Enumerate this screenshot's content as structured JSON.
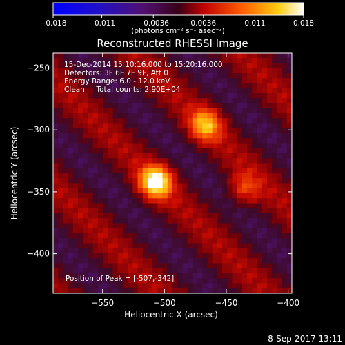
{
  "chart_data": {
    "type": "heatmap",
    "title": "Reconstructed RHESSI Image",
    "xlabel": "Heliocentric X (arcsec)",
    "ylabel": "Heliocentric Y (arcsec)",
    "xlim": [
      -590,
      -397
    ],
    "ylim": [
      -432,
      -238
    ],
    "xticks": [
      -550,
      -500,
      -450,
      -400
    ],
    "yticks": [
      -250,
      -300,
      -350,
      -400
    ],
    "colorbar": {
      "range": [
        -0.018,
        0.018
      ],
      "ticks": [
        -0.018,
        -0.011,
        -0.0036,
        0.0036,
        0.011,
        0.018
      ],
      "tick_labels": [
        "-0.018",
        "-0.011",
        "-0.0036",
        "0.0036",
        "0.011",
        "0.018"
      ],
      "units_label": "(photons cm⁻² s⁻¹ asec⁻²)"
    },
    "annotations": [
      "15-Dec-2014 15:10:16.000 to 15:20:16.000",
      "Detectors: 3F 6F 7F 9F, Att 0",
      "Energy Range: 6.0 - 12.0 keV",
      "Clean     Total counts: 2.90E+04"
    ],
    "peak_text": "Position of Peak = [-507,-342]",
    "sources": [
      {
        "x": -507,
        "y": -342,
        "intensity": 0.018
      },
      {
        "x": -467,
        "y": -296,
        "intensity": 0.012
      },
      {
        "x": -436,
        "y": -348,
        "intensity": 0.007
      }
    ]
  },
  "footer_date": "8-Sep-2017 13:11",
  "colors": {
    "background": "#000000",
    "text": "#ffffff",
    "colormap": [
      "#0000ff",
      "#3010d0",
      "#601080",
      "#2a0020",
      "#ff0000",
      "#ff8000",
      "#ffe000",
      "#ffffff"
    ]
  }
}
